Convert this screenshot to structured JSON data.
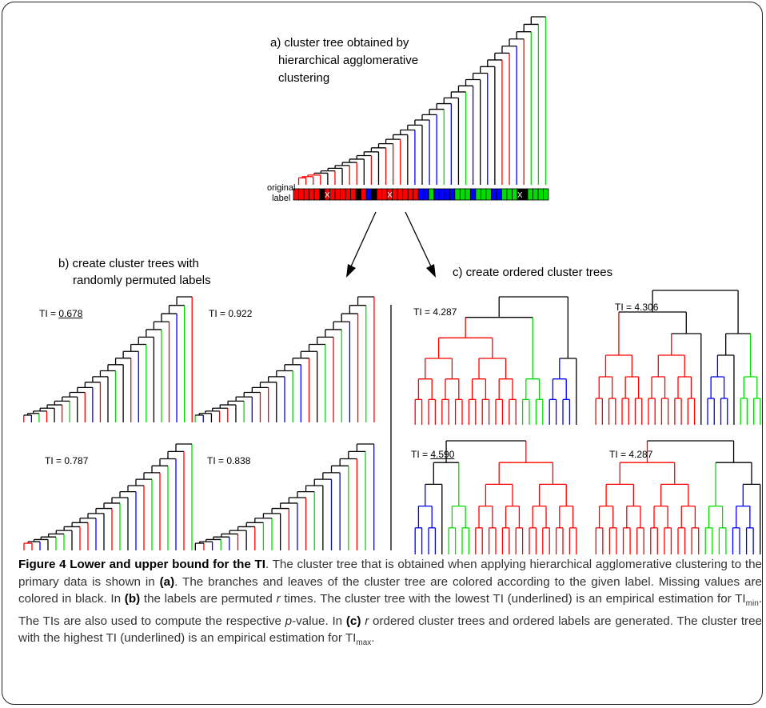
{
  "panel_a": {
    "title_lines": [
      "a) cluster tree obtained by",
      "hierarchical agglomerative",
      "clustering"
    ],
    "original_label_lines": [
      "original",
      "label"
    ],
    "missing_marker": "X"
  },
  "panel_b": {
    "title_lines": [
      "b) create cluster trees with",
      "randomly permuted labels"
    ],
    "tis": [
      {
        "label": "TI = ",
        "value": "0.678",
        "underlined": true
      },
      {
        "label": "TI = ",
        "value": "0.922",
        "underlined": false
      },
      {
        "label": "TI = ",
        "value": "0.787",
        "underlined": false
      },
      {
        "label": "TI = ",
        "value": "0.838",
        "underlined": false
      }
    ]
  },
  "panel_c": {
    "title": "c) create ordered cluster trees",
    "tis": [
      {
        "label": "TI = ",
        "value": "4.287",
        "underlined": false
      },
      {
        "label": "TI = ",
        "value": "4.306",
        "underlined": false
      },
      {
        "label": "TI = ",
        "value": "4.590",
        "underlined": true
      },
      {
        "label": "TI = ",
        "value": "4.287",
        "underlined": false
      }
    ]
  },
  "colors": {
    "red": "#ff0000",
    "green": "#00dd00",
    "blue": "#0000ff",
    "black": "#000000"
  },
  "caption": {
    "title": "Figure 4 Lower and upper bound for the TI",
    "text_1": ". The cluster tree that is obtained when applying hierarchical agglomerative clustering to the primary data is shown in ",
    "ref_a": "(a)",
    "text_2": ". The branches and leaves of the cluster tree are colored according to the given label. Missing values are colored in black. In ",
    "ref_b": "(b)",
    "text_3": " the labels are permuted ",
    "r1": "r",
    "text_4": " times. The cluster tree with the lowest TI (underlined) is an empirical estimation for TI",
    "sub_min": "min",
    "text_5": ". The TIs are also used to compute the respective ",
    "p": "p",
    "text_6": "-value. In ",
    "ref_c": "(c)",
    "text_7": " ",
    "r2": "r",
    "text_8": " ordered cluster trees and ordered labels are generated. The cluster tree with the highest TI (underlined) is an empirical estimation for TI",
    "sub_max": "max",
    "text_9": "."
  }
}
